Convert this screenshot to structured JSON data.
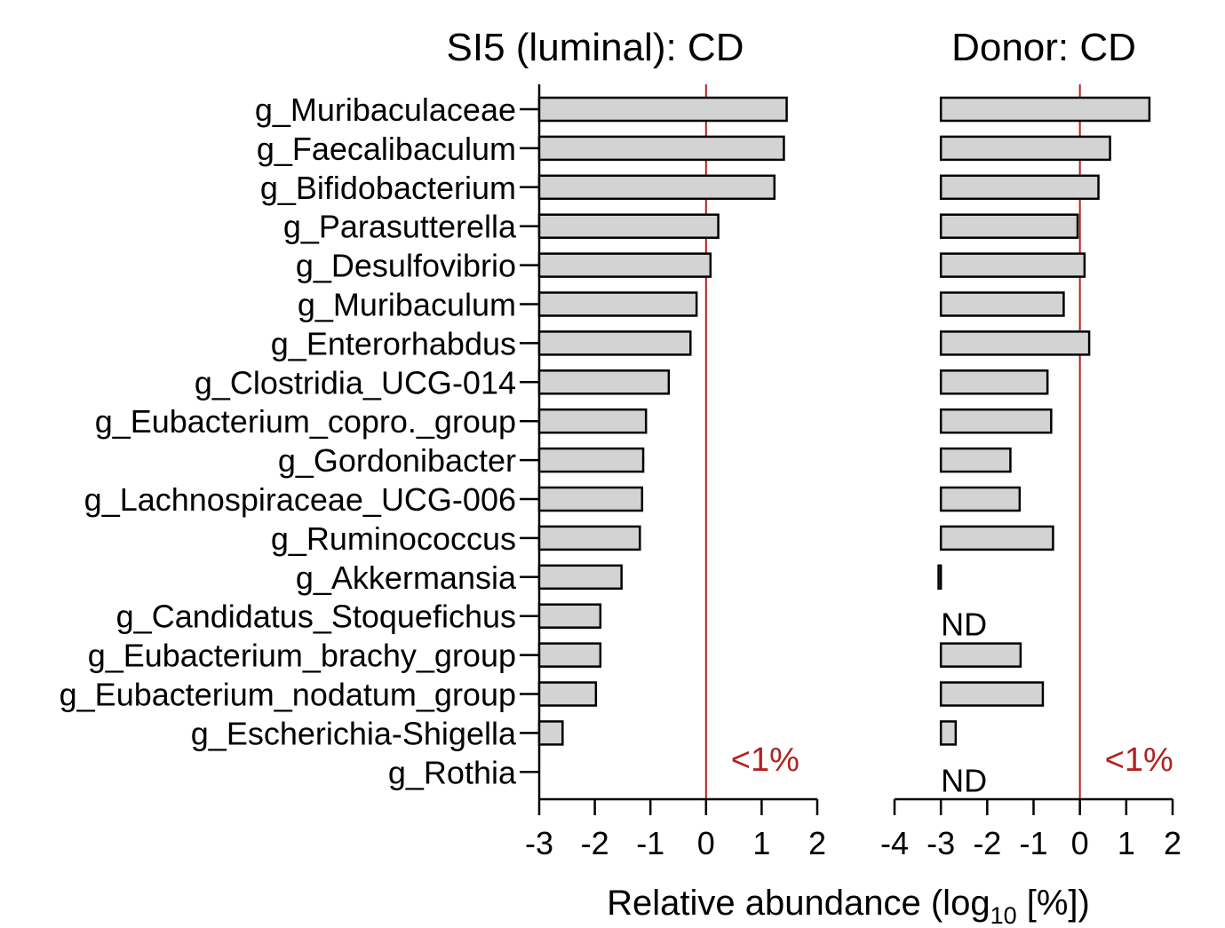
{
  "chart_data": [
    {
      "type": "bar",
      "orientation": "horizontal",
      "title": "SI5 (luminal): CD",
      "bar_origin": -3,
      "xlim": [
        -3,
        2
      ],
      "xticks": [
        -3,
        -2,
        -1,
        0,
        1,
        2
      ],
      "reference_line": {
        "x": 0,
        "label": "<1%"
      },
      "categories": [
        "g_Muribaculaceae",
        "g_Faecalibaculum",
        "g_Bifidobacterium",
        "g_Parasutterella",
        "g_Desulfovibrio",
        "g_Muribaculum",
        "g_Enterorhabdus",
        "g_Clostridia_UCG-014",
        "g_Eubacterium_copro._group",
        "g_Gordonibacter",
        "g_Lachnospiraceae_UCG-006",
        "g_Ruminococcus",
        "g_Akkermansia",
        "g_Candidatus_Stoquefichus",
        "g_Eubacterium_brachy_group",
        "g_Eubacterium_nodatum_group",
        "g_Escherichia-Shigella",
        "g_Rothia"
      ],
      "values": [
        1.45,
        1.4,
        1.23,
        0.22,
        0.08,
        -0.17,
        -0.28,
        -0.67,
        -1.08,
        -1.13,
        -1.15,
        -1.19,
        -1.52,
        -1.9,
        -1.9,
        -1.98,
        -2.58,
        null
      ],
      "missing_labels": []
    },
    {
      "type": "bar",
      "orientation": "horizontal",
      "title": "Donor: CD",
      "bar_origin": -3,
      "xlim": [
        -4,
        2
      ],
      "xticks": [
        -4,
        -3,
        -2,
        -1,
        0,
        1,
        2
      ],
      "reference_line": {
        "x": 0,
        "label": "<1%"
      },
      "categories": [
        "g_Muribaculaceae",
        "g_Faecalibaculum",
        "g_Bifidobacterium",
        "g_Parasutterella",
        "g_Desulfovibrio",
        "g_Muribaculum",
        "g_Enterorhabdus",
        "g_Clostridia_UCG-014",
        "g_Eubacterium_copro._group",
        "g_Gordonibacter",
        "g_Lachnospiraceae_UCG-006",
        "g_Ruminococcus",
        "g_Akkermansia",
        "g_Candidatus_Stoquefichus",
        "g_Eubacterium_brachy_group",
        "g_Eubacterium_nodatum_group",
        "g_Escherichia-Shigella",
        "g_Rothia"
      ],
      "values": [
        1.5,
        0.65,
        0.4,
        -0.05,
        0.1,
        -0.35,
        0.2,
        -0.7,
        -0.62,
        -1.5,
        -1.3,
        -0.58,
        -3.05,
        null,
        -1.28,
        -0.8,
        -2.68,
        null
      ],
      "missing_labels": [
        {
          "category": "g_Candidatus_Stoquefichus",
          "text": "ND"
        },
        {
          "category": "g_Rothia",
          "text": "ND"
        }
      ]
    }
  ],
  "xlabel": {
    "prefix": "Relative abundance (log",
    "subscript": "10",
    "suffix": " [%])"
  },
  "colors": {
    "bar_fill": "#d3d3d3",
    "bar_stroke": "#000000",
    "reference_line": "#b22222",
    "text": "#000000"
  }
}
